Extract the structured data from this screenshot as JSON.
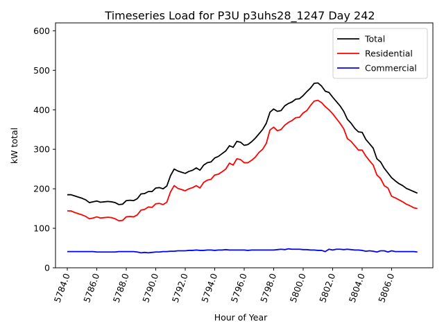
{
  "chart_data": {
    "type": "line",
    "title": "Timeseries Load for P3U p3uhs28_1247  Day 242",
    "xlabel": "Hour of Year",
    "ylabel": "kW total",
    "xlim": [
      5783.2,
      5808.8
    ],
    "ylim": [
      0,
      620
    ],
    "x_ticks": [
      5784,
      5786,
      5788,
      5790,
      5792,
      5794,
      5796,
      5798,
      5800,
      5802,
      5804,
      5806
    ],
    "x_tick_labels": [
      "5784.0",
      "5786.0",
      "5788.0",
      "5790.0",
      "5792.0",
      "5794.0",
      "5796.0",
      "5798.0",
      "5800.0",
      "5802.0",
      "5804.0",
      "5806.0"
    ],
    "y_ticks": [
      0,
      100,
      200,
      300,
      400,
      500,
      600
    ],
    "y_tick_labels": [
      "0",
      "100",
      "200",
      "300",
      "400",
      "500",
      "600"
    ],
    "legend": {
      "position": "top-right"
    },
    "x_start": 5784.0,
    "x_step": 0.25,
    "series": [
      {
        "name": "Total",
        "color": "#000000",
        "values": [
          185,
          185,
          182,
          179,
          176,
          172,
          165,
          167,
          169,
          166,
          167,
          168,
          167,
          165,
          160,
          161,
          170,
          171,
          170,
          175,
          187,
          188,
          193,
          193,
          202,
          203,
          200,
          207,
          233,
          250,
          245,
          242,
          239,
          244,
          247,
          253,
          247,
          260,
          266,
          268,
          278,
          282,
          289,
          296,
          309,
          305,
          320,
          318,
          310,
          312,
          319,
          328,
          339,
          350,
          366,
          394,
          402,
          396,
          398,
          410,
          416,
          420,
          427,
          428,
          436,
          446,
          455,
          467,
          468,
          460,
          447,
          444,
          432,
          421,
          410,
          396,
          376,
          366,
          353,
          344,
          343,
          325,
          314,
          303,
          276,
          268,
          252,
          240,
          228,
          220,
          213,
          208,
          201,
          197,
          193,
          189
        ]
      },
      {
        "name": "Residential",
        "color": "#ff0000",
        "values": [
          144,
          144,
          140,
          137,
          134,
          130,
          124,
          126,
          129,
          126,
          127,
          128,
          127,
          124,
          119,
          120,
          129,
          130,
          129,
          134,
          146,
          148,
          154,
          153,
          162,
          163,
          160,
          166,
          192,
          208,
          201,
          198,
          195,
          200,
          203,
          208,
          202,
          216,
          222,
          224,
          235,
          237,
          243,
          250,
          265,
          260,
          276,
          274,
          266,
          266,
          272,
          280,
          292,
          300,
          315,
          349,
          356,
          347,
          350,
          361,
          368,
          373,
          380,
          381,
          392,
          398,
          411,
          422,
          424,
          418,
          408,
          400,
          390,
          378,
          366,
          352,
          327,
          320,
          309,
          298,
          298,
          283,
          271,
          260,
          235,
          226,
          208,
          202,
          181,
          177,
          172,
          167,
          161,
          157,
          152,
          150
        ]
      },
      {
        "name": "Commercial",
        "color": "#0000ff",
        "values": [
          41,
          41,
          41,
          41,
          41,
          41,
          41,
          41,
          40,
          40,
          40,
          40,
          40,
          40,
          41,
          41,
          41,
          41,
          41,
          40,
          38,
          39,
          38,
          39,
          40,
          40,
          41,
          41,
          42,
          42,
          43,
          43,
          43,
          44,
          44,
          45,
          44,
          44,
          45,
          45,
          44,
          45,
          45,
          46,
          45,
          45,
          45,
          45,
          45,
          44,
          45,
          45,
          45,
          45,
          45,
          45,
          45,
          46,
          47,
          46,
          48,
          47,
          47,
          47,
          46,
          46,
          45,
          45,
          44,
          44,
          41,
          47,
          45,
          47,
          47,
          46,
          47,
          46,
          45,
          45,
          44,
          42,
          43,
          42,
          40,
          43,
          43,
          40,
          43,
          41,
          41,
          41,
          41,
          41,
          41,
          40
        ]
      }
    ]
  }
}
